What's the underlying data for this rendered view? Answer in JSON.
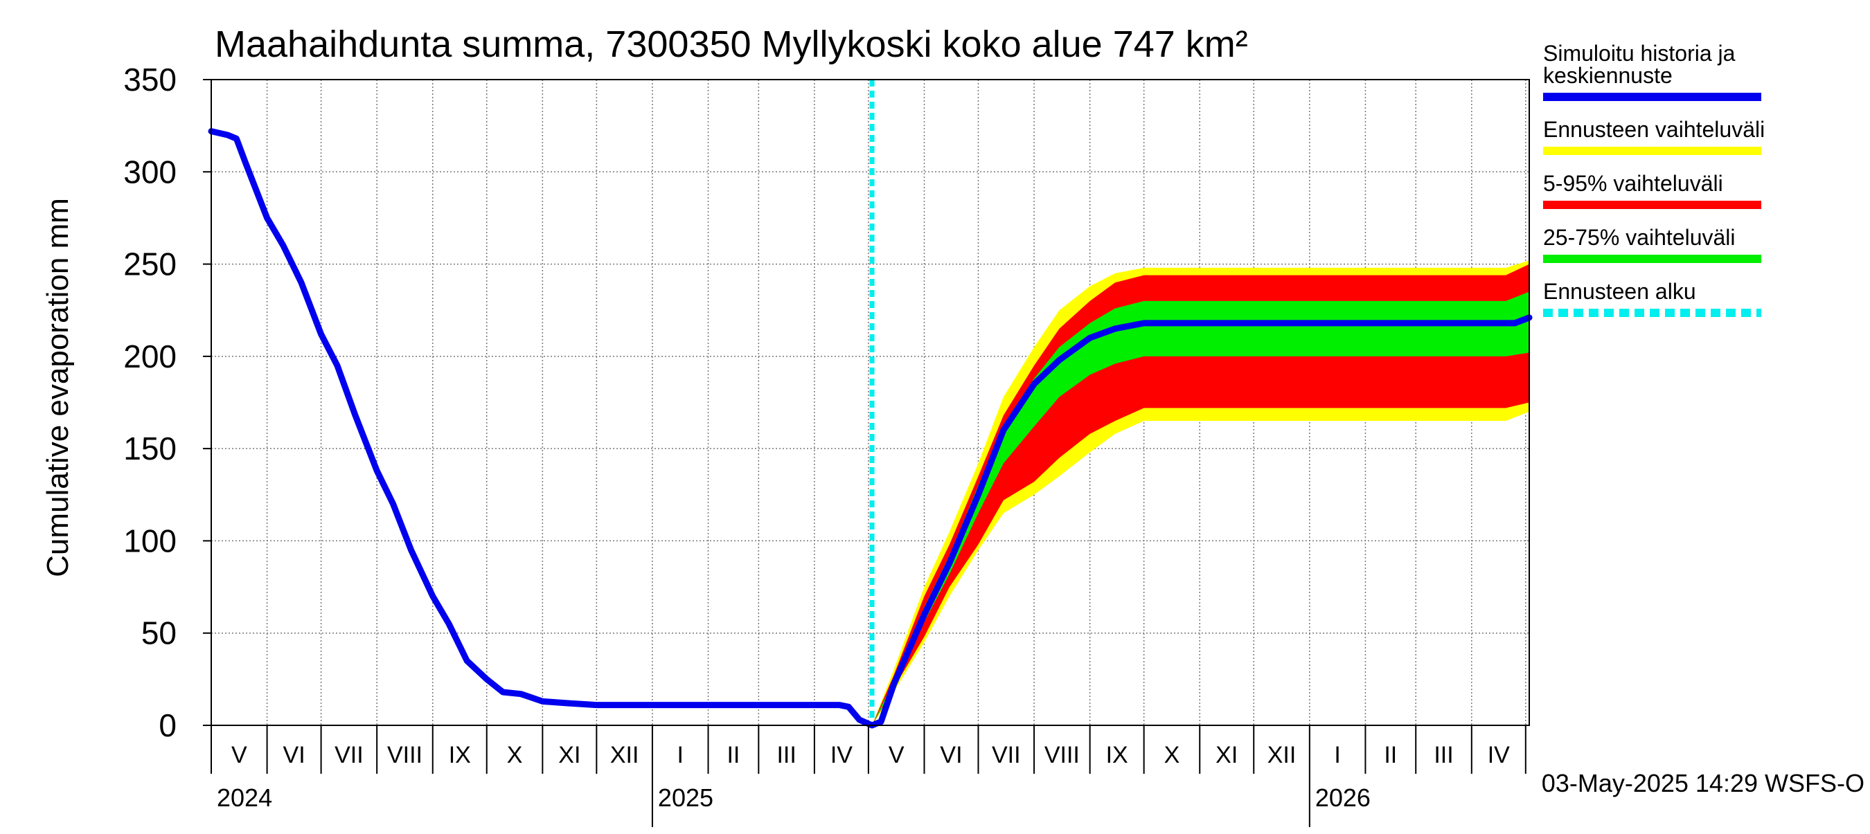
{
  "chart_data": {
    "type": "line",
    "title": "Maahaihdunta summa, 7300350 Myllykoski koko alue 747 km²",
    "ylabel": "Cumulative evaporation   mm",
    "xlabel": "",
    "ylim": [
      0,
      350
    ],
    "xlim": [
      "2024-05-01",
      "2026-05-03"
    ],
    "yticks": [
      "0",
      "50",
      "100",
      "150",
      "200",
      "250",
      "300",
      "350"
    ],
    "month_labels": [
      "V",
      "VI",
      "VII",
      "VIII",
      "IX",
      "X",
      "XI",
      "XII",
      "I",
      "II",
      "III",
      "IV",
      "V",
      "VI",
      "VII",
      "VIII",
      "IX",
      "X",
      "XI",
      "XII",
      "I",
      "II",
      "III",
      "IV"
    ],
    "year_labels": [
      "2024",
      "2025",
      "2026"
    ],
    "grid": true,
    "legend_position": "right",
    "forecast_start": "2025-05-03",
    "footer": "03-May-2025 14:29 WSFS-O",
    "colors": {
      "history": "#0000ee",
      "yellow_band": "#ffff00",
      "red_band": "#ff0000",
      "green_band": "#00ee00",
      "forecast_start_line": "#00eeee"
    },
    "legend": [
      {
        "label": "Simuloitu historia ja\nkeskiennuste",
        "color": "#0000ee",
        "style": "solid"
      },
      {
        "label": "Ennusteen vaihteluväli",
        "color": "#ffff00",
        "style": "solid"
      },
      {
        "label": "5-95% vaihteluväli",
        "color": "#ff0000",
        "style": "solid"
      },
      {
        "label": "25-75% vaihteluväli",
        "color": "#00ee00",
        "style": "solid"
      },
      {
        "label": "Ennusteen alku",
        "color": "#00eeee",
        "style": "dashed"
      }
    ],
    "series": [
      {
        "name": "Simuloitu historia ja keskiennuste",
        "x": [
          "2024-05-01",
          "2024-05-10",
          "2024-05-15",
          "2024-05-20",
          "2024-06-01",
          "2024-06-10",
          "2024-06-20",
          "2024-07-01",
          "2024-07-10",
          "2024-07-20",
          "2024-08-01",
          "2024-08-10",
          "2024-08-20",
          "2024-09-01",
          "2024-09-10",
          "2024-09-20",
          "2024-10-01",
          "2024-10-10",
          "2024-10-20",
          "2024-11-01",
          "2024-11-15",
          "2024-12-01",
          "2025-01-01",
          "2025-02-01",
          "2025-03-01",
          "2025-04-01",
          "2025-04-15",
          "2025-04-20",
          "2025-04-26",
          "2025-05-03",
          "2025-05-08",
          "2025-05-15",
          "2025-06-01",
          "2025-06-15",
          "2025-07-01",
          "2025-07-15",
          "2025-08-01",
          "2025-08-15",
          "2025-09-01",
          "2025-09-15",
          "2025-10-01",
          "2025-10-15",
          "2025-11-01",
          "2025-12-01",
          "2026-01-01",
          "2026-02-01",
          "2026-03-01",
          "2026-04-01",
          "2026-04-25",
          "2026-05-03"
        ],
        "y": [
          322,
          320,
          318,
          305,
          275,
          260,
          240,
          212,
          195,
          168,
          138,
          120,
          95,
          70,
          55,
          35,
          25,
          18,
          17,
          13,
          12,
          11,
          11,
          11,
          11,
          11,
          11,
          10,
          3,
          0,
          2,
          22,
          60,
          88,
          125,
          160,
          185,
          198,
          210,
          215,
          218,
          218,
          218,
          218,
          218,
          218,
          218,
          218,
          218,
          221
        ]
      },
      {
        "name": "Ennusteen vaihteluväli",
        "x": [
          "2025-05-03",
          "2025-05-15",
          "2025-06-01",
          "2025-06-15",
          "2025-07-01",
          "2025-07-15",
          "2025-08-01",
          "2025-08-15",
          "2025-09-01",
          "2025-09-15",
          "2025-10-01",
          "2025-10-15",
          "2025-11-01",
          "2026-01-01",
          "2026-04-20",
          "2026-05-03"
        ],
        "upper": [
          0,
          30,
          75,
          105,
          142,
          178,
          205,
          225,
          238,
          245,
          248,
          248,
          248,
          248,
          248,
          252
        ],
        "lower": [
          0,
          18,
          45,
          70,
          95,
          115,
          125,
          135,
          148,
          158,
          165,
          165,
          165,
          165,
          165,
          170
        ]
      },
      {
        "name": "5-95% vaihteluväli",
        "x": [
          "2025-05-03",
          "2025-05-15",
          "2025-06-01",
          "2025-06-15",
          "2025-07-01",
          "2025-07-15",
          "2025-08-01",
          "2025-08-15",
          "2025-09-01",
          "2025-09-15",
          "2025-10-01",
          "2025-10-15",
          "2025-11-01",
          "2026-01-01",
          "2026-04-20",
          "2026-05-03"
        ],
        "upper": [
          0,
          27,
          70,
          98,
          135,
          168,
          195,
          215,
          230,
          240,
          244,
          244,
          244,
          244,
          244,
          250
        ],
        "lower": [
          0,
          20,
          48,
          75,
          98,
          122,
          132,
          145,
          158,
          165,
          172,
          172,
          172,
          172,
          172,
          175
        ]
      },
      {
        "name": "25-75% vaihteluväli",
        "x": [
          "2025-05-03",
          "2025-05-15",
          "2025-06-01",
          "2025-06-15",
          "2025-07-01",
          "2025-07-15",
          "2025-08-01",
          "2025-08-15",
          "2025-09-01",
          "2025-09-15",
          "2025-10-01",
          "2025-10-15",
          "2025-11-01",
          "2026-01-01",
          "2026-04-20",
          "2026-05-03"
        ],
        "upper": [
          0,
          24,
          64,
          92,
          130,
          162,
          188,
          205,
          218,
          226,
          230,
          230,
          230,
          230,
          230,
          235
        ],
        "lower": [
          0,
          21,
          56,
          82,
          115,
          142,
          162,
          178,
          190,
          196,
          200,
          200,
          200,
          200,
          200,
          202
        ]
      }
    ]
  }
}
